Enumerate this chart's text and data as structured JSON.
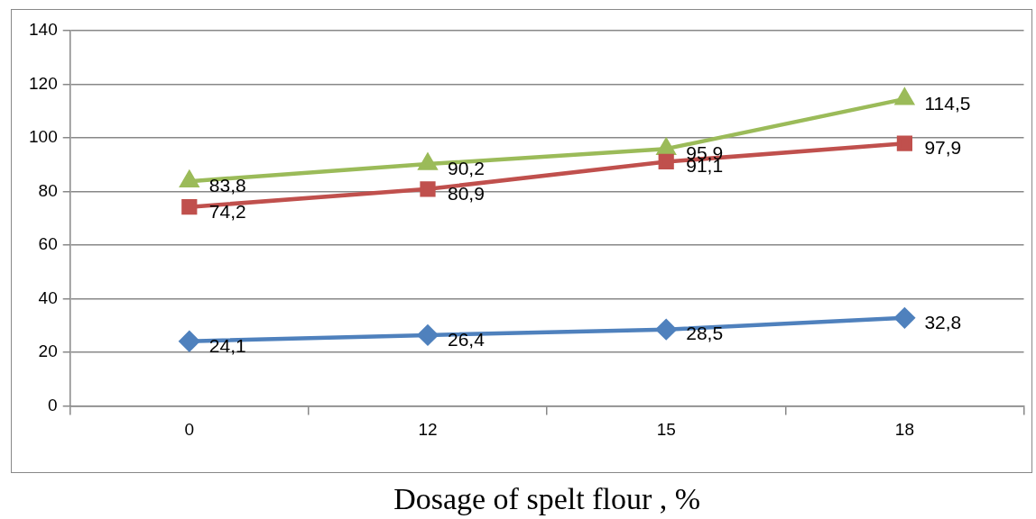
{
  "chart_data": {
    "type": "line",
    "xlabel": "Dosage of spelt flour , %",
    "categories": [
      "0",
      "12",
      "15",
      "18"
    ],
    "ylim": [
      0,
      140
    ],
    "yticks": [
      0,
      20,
      40,
      60,
      80,
      100,
      120,
      140
    ],
    "grid": "y",
    "legend": false,
    "line_style": "solid",
    "series": [
      {
        "color": "#4f81bd",
        "marker": "diamond",
        "values": [
          24.1,
          26.4,
          28.5,
          32.8
        ],
        "value_labels": [
          "24,1",
          "26,4",
          "28,5",
          "32,8"
        ]
      },
      {
        "color": "#c0504d",
        "marker": "square",
        "values": [
          74.2,
          80.9,
          91.1,
          97.9
        ],
        "value_labels": [
          "74,2",
          "80,9",
          "91,1",
          "97,9"
        ]
      },
      {
        "color": "#9bbb59",
        "marker": "triangle",
        "values": [
          83.8,
          90.2,
          95.9,
          114.5
        ],
        "value_labels": [
          "83,8",
          "90,2",
          "95,9",
          "114,5"
        ]
      }
    ]
  }
}
